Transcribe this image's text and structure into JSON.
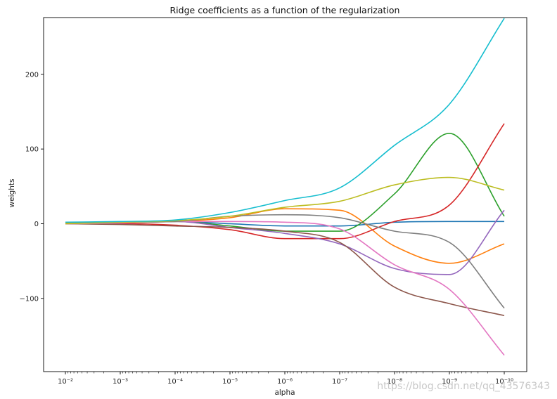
{
  "chart_data": {
    "type": "line",
    "title": "Ridge coefficients as a function of the regularization",
    "xlabel": "alpha",
    "ylabel": "weights",
    "x_scale": "log",
    "x_inverted": true,
    "xlim": [
      0.01,
      1e-10
    ],
    "ylim": [
      -198,
      276
    ],
    "grid": false,
    "x_ticks": [
      {
        "value": 0.01,
        "label": "10⁻²"
      },
      {
        "value": 0.001,
        "label": "10⁻³"
      },
      {
        "value": 0.0001,
        "label": "10⁻⁴"
      },
      {
        "value": 1e-05,
        "label": "10⁻⁵"
      },
      {
        "value": 1e-06,
        "label": "10⁻⁶"
      },
      {
        "value": 1e-07,
        "label": "10⁻⁷"
      },
      {
        "value": 1e-08,
        "label": "10⁻⁸"
      },
      {
        "value": 1e-09,
        "label": "10⁻⁹"
      },
      {
        "value": 1e-10,
        "label": "10⁻¹⁰"
      }
    ],
    "y_ticks": [
      {
        "value": 200,
        "label": "200"
      },
      {
        "value": 100,
        "label": "100"
      },
      {
        "value": 0,
        "label": "0"
      },
      {
        "value": -100,
        "label": "−100"
      }
    ],
    "x": [
      0.01,
      0.001,
      0.0001,
      1e-05,
      1e-06,
      1e-07,
      1e-08,
      1e-09,
      1e-10
    ],
    "series": [
      {
        "color": "#1f77b4",
        "values": [
          0,
          2,
          3,
          0,
          -3,
          -3,
          2,
          3,
          3
        ]
      },
      {
        "color": "#ff7f0e",
        "values": [
          1,
          2,
          3,
          8,
          20,
          18,
          -30,
          -53,
          -27
        ]
      },
      {
        "color": "#2ca02c",
        "values": [
          0,
          1,
          3,
          -3,
          -10,
          -10,
          40,
          121,
          10
        ]
      },
      {
        "color": "#d62728",
        "values": [
          0,
          0,
          -2,
          -8,
          -20,
          -20,
          3,
          25,
          134
        ]
      },
      {
        "color": "#9467bd",
        "values": [
          0,
          2,
          3,
          -5,
          -13,
          -27,
          -60,
          -68,
          18
        ]
      },
      {
        "color": "#8c564b",
        "values": [
          0,
          -1,
          -3,
          -5,
          -10,
          -25,
          -85,
          -107,
          -123
        ]
      },
      {
        "color": "#e377c2",
        "values": [
          0,
          1,
          3,
          3,
          2,
          -7,
          -55,
          -88,
          -176
        ]
      },
      {
        "color": "#7f7f7f",
        "values": [
          0,
          2,
          3,
          10,
          12,
          8,
          -10,
          -25,
          -113
        ]
      },
      {
        "color": "#bcbd22",
        "values": [
          0,
          2,
          4,
          10,
          22,
          30,
          52,
          62,
          45
        ]
      },
      {
        "color": "#17becf",
        "values": [
          2,
          3,
          5,
          15,
          31,
          48,
          105,
          160,
          275
        ]
      }
    ]
  },
  "watermark": "https://blog.csdn.net/qq_43576343"
}
